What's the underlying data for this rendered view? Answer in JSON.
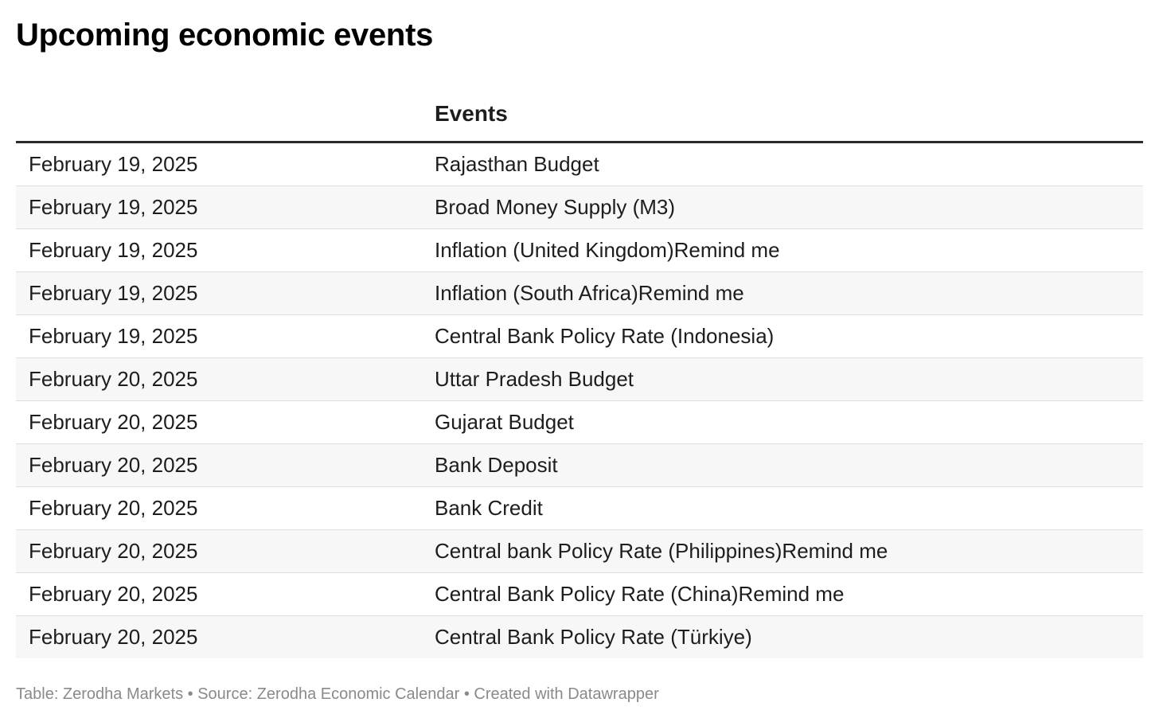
{
  "title": "Upcoming economic events",
  "table": {
    "columns": [
      "",
      "Events"
    ],
    "rows": [
      {
        "date": "February 19, 2025",
        "event": "Rajasthan Budget"
      },
      {
        "date": "February 19, 2025",
        "event": "Broad Money Supply (M3)"
      },
      {
        "date": "February 19, 2025",
        "event": "Inflation (United Kingdom)Remind me"
      },
      {
        "date": "February 19, 2025",
        "event": "Inflation (South Africa)Remind me"
      },
      {
        "date": "February 19, 2025",
        "event": "Central Bank Policy Rate (Indonesia)"
      },
      {
        "date": "February 20, 2025",
        "event": "Uttar Pradesh Budget"
      },
      {
        "date": "February 20, 2025",
        "event": "Gujarat Budget"
      },
      {
        "date": "February 20, 2025",
        "event": "Bank Deposit"
      },
      {
        "date": "February 20, 2025",
        "event": "Bank Credit"
      },
      {
        "date": "February 20, 2025",
        "event": "Central bank Policy Rate (Philippines)Remind me"
      },
      {
        "date": "February 20, 2025",
        "event": "Central Bank Policy Rate (China)Remind me"
      },
      {
        "date": "February 20, 2025",
        "event": "Central Bank Policy Rate (Türkiye)"
      }
    ]
  },
  "footer": {
    "text": "Table: Zerodha Markets • Source: Zerodha Economic Calendar • Created with Datawrapper"
  }
}
